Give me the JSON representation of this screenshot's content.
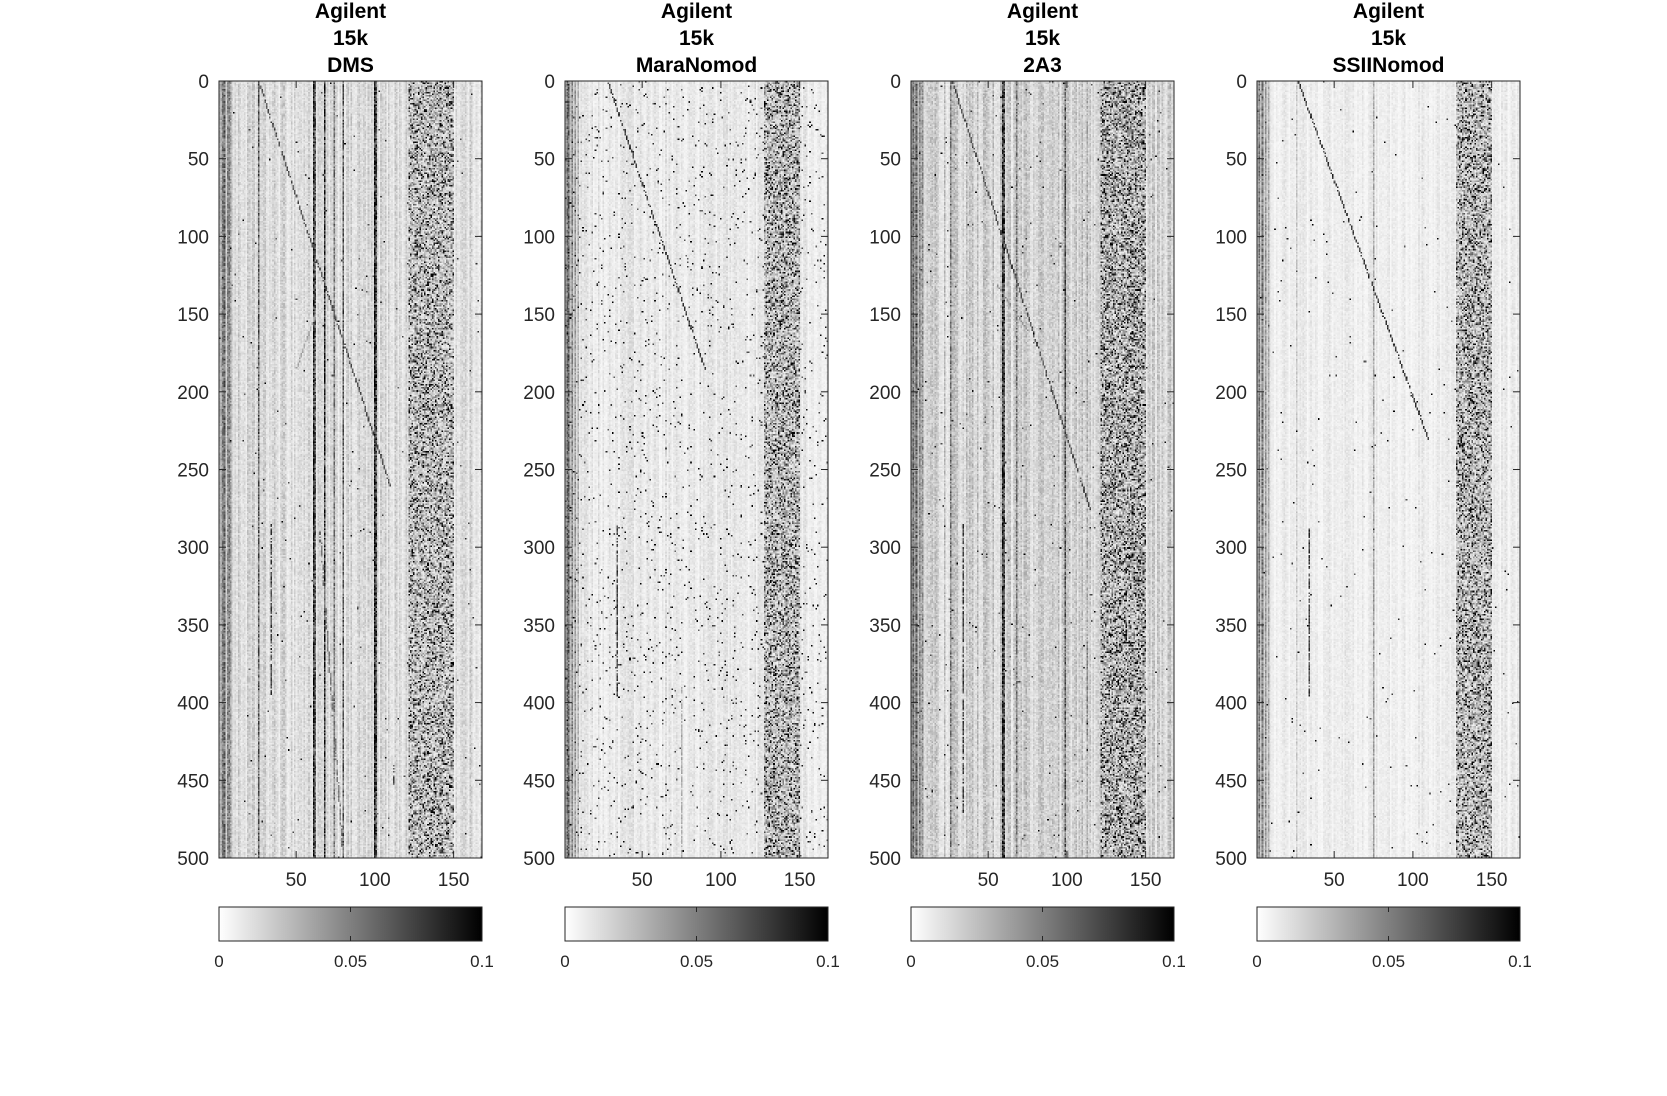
{
  "chart_data": [
    {
      "type": "heatmap",
      "title": [
        "Agilent",
        "15k",
        "DMS"
      ],
      "xlim": [
        1,
        168
      ],
      "ylim": [
        0,
        500
      ],
      "xticks": [
        50,
        100,
        150
      ],
      "yticks": [
        0,
        50,
        100,
        150,
        200,
        250,
        300,
        350,
        400,
        450,
        500
      ],
      "colormap": "gray-reversed",
      "clim": [
        0,
        0.1
      ],
      "colorbar": {
        "location": "bottom",
        "ticks": [
          0,
          0.05,
          0.1
        ],
        "tick_labels": [
          "0",
          "0.05",
          "0.1"
        ]
      },
      "features": {
        "noise_level": 0.016,
        "dark_columns": [
          [
            3,
            0.035
          ],
          [
            4,
            0.045
          ],
          [
            6,
            0.035
          ],
          [
            7,
            0.04
          ],
          [
            8,
            0.03
          ],
          [
            26,
            0.06
          ],
          [
            61,
            0.085
          ],
          [
            62,
            0.06
          ],
          [
            68,
            0.08
          ],
          [
            74,
            0.05
          ],
          [
            80,
            0.06
          ],
          [
            100,
            0.09
          ],
          [
            101,
            0.07
          ],
          [
            113,
            0.02
          ]
        ],
        "banded_region": [
          122,
          150
        ],
        "band_strength": 0.7,
        "diagonals": [
          [
            26,
            0,
            110,
            260,
            0.08
          ],
          [
            62,
            150,
            50,
            185,
            0.04
          ],
          [
            65,
            290,
            80,
            500,
            0.06
          ]
        ],
        "segments": [
          [
            34,
            285,
            395,
            0.09
          ],
          [
            112,
            440,
            452,
            0.08
          ]
        ],
        "salt": 0.003
      }
    },
    {
      "type": "heatmap",
      "title": [
        "Agilent",
        "15k",
        "MaraNomod"
      ],
      "xlim": [
        1,
        168
      ],
      "ylim": [
        0,
        500
      ],
      "xticks": [
        50,
        100,
        150
      ],
      "yticks": [
        0,
        50,
        100,
        150,
        200,
        250,
        300,
        350,
        400,
        450,
        500
      ],
      "colormap": "gray-reversed",
      "clim": [
        0,
        0.1
      ],
      "colorbar": {
        "location": "bottom",
        "ticks": [
          0,
          0.05,
          0.1
        ],
        "tick_labels": [
          "0",
          "0.05",
          "0.1"
        ]
      },
      "features": {
        "noise_level": 0.01,
        "dark_columns": [
          [
            2,
            0.04
          ],
          [
            3,
            0.045
          ],
          [
            5,
            0.035
          ],
          [
            7,
            0.03
          ],
          [
            9,
            0.025
          ]
        ],
        "banded_region": [
          128,
          150
        ],
        "band_strength": 0.7,
        "diagonals": [
          [
            28,
            0,
            90,
            185,
            0.09
          ]
        ],
        "segments": [
          [
            34,
            285,
            395,
            0.09
          ],
          [
            75,
            390,
            500,
            0.04
          ]
        ],
        "salt": 0.022
      }
    },
    {
      "type": "heatmap",
      "title": [
        "Agilent",
        "15k",
        "2A3"
      ],
      "xlim": [
        1,
        168
      ],
      "ylim": [
        0,
        500
      ],
      "xticks": [
        50,
        100,
        150
      ],
      "yticks": [
        0,
        50,
        100,
        150,
        200,
        250,
        300,
        350,
        400,
        450,
        500
      ],
      "colormap": "gray-reversed",
      "clim": [
        0,
        0.1
      ],
      "colorbar": {
        "location": "bottom",
        "ticks": [
          0,
          0.05,
          0.1
        ],
        "tick_labels": [
          "0",
          "0.05",
          "0.1"
        ]
      },
      "features": {
        "noise_level": 0.02,
        "dark_columns": [
          [
            2,
            0.04
          ],
          [
            4,
            0.045
          ],
          [
            6,
            0.035
          ],
          [
            8,
            0.035
          ],
          [
            26,
            0.05
          ],
          [
            59,
            0.08
          ],
          [
            60,
            0.07
          ],
          [
            68,
            0.05
          ],
          [
            99,
            0.06
          ],
          [
            113,
            0.03
          ]
        ],
        "banded_region": [
          122,
          150
        ],
        "band_strength": 0.85,
        "diagonals": [
          [
            27,
            0,
            115,
            275,
            0.08
          ],
          [
            55,
            130,
            75,
            160,
            0.05
          ]
        ],
        "segments": [
          [
            34,
            285,
            470,
            0.09
          ],
          [
            99,
            60,
            210,
            0.09
          ],
          [
            113,
            360,
            420,
            0.06
          ]
        ],
        "salt": 0.004
      }
    },
    {
      "type": "heatmap",
      "title": [
        "Agilent",
        "15k",
        "SSIINomod"
      ],
      "xlim": [
        1,
        168
      ],
      "ylim": [
        0,
        500
      ],
      "xticks": [
        50,
        100,
        150
      ],
      "yticks": [
        0,
        50,
        100,
        150,
        200,
        250,
        300,
        350,
        400,
        450,
        500
      ],
      "colormap": "gray-reversed",
      "clim": [
        0,
        0.1
      ],
      "colorbar": {
        "location": "bottom",
        "ticks": [
          0,
          0.05,
          0.1
        ],
        "tick_labels": [
          "0",
          "0.05",
          "0.1"
        ]
      },
      "features": {
        "noise_level": 0.008,
        "dark_columns": [
          [
            2,
            0.035
          ],
          [
            4,
            0.04
          ],
          [
            6,
            0.03
          ],
          [
            8,
            0.025
          ],
          [
            26,
            0.02
          ],
          [
            75,
            0.03
          ]
        ],
        "banded_region": [
          128,
          150
        ],
        "band_strength": 0.75,
        "diagonals": [
          [
            27,
            0,
            110,
            230,
            0.09
          ]
        ],
        "segments": [
          [
            34,
            285,
            395,
            0.09
          ],
          [
            75,
            310,
            500,
            0.05
          ]
        ],
        "salt": 0.003
      }
    }
  ]
}
